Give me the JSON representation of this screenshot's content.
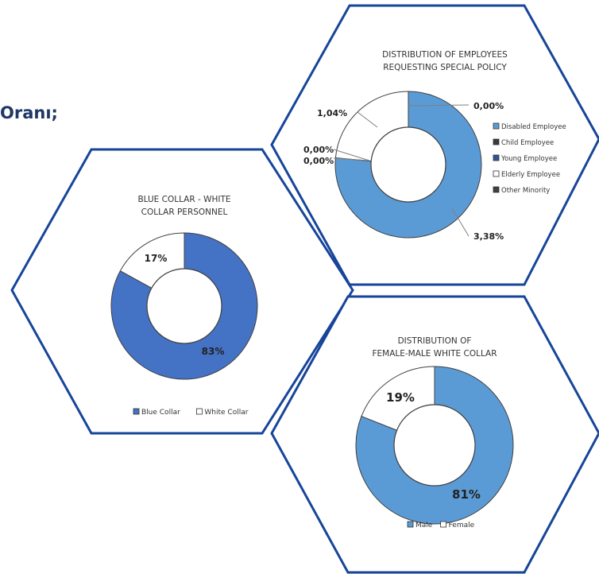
{
  "page": {
    "heading": "Oranı;",
    "colors": {
      "hex_border": "#17459a",
      "blue": "#5b9bd5",
      "blue_dark": "#4472c4",
      "white": "#ffffff",
      "outline": "#404040",
      "leader": "#7f7f7f",
      "text": "#222222"
    }
  },
  "chart_data": [
    {
      "id": "collar",
      "type": "pie",
      "donut": true,
      "title": [
        "BLUE COLLAR - WHITE",
        "COLLAR PERSONNEL"
      ],
      "slices": [
        {
          "label": "Blue Collar",
          "value": 83,
          "display": "83%",
          "color": "#4472c4"
        },
        {
          "label": "White Collar",
          "value": 17,
          "display": "17%",
          "color": "#ffffff"
        }
      ],
      "legend": [
        "Blue Collar",
        "White Collar"
      ],
      "legend_position": "bottom"
    },
    {
      "id": "policy",
      "type": "pie",
      "donut": true,
      "title": [
        "DISTRIBUTION OF EMPLOYEES",
        "REQUESTING SPECIAL POLICY"
      ],
      "slices": [
        {
          "label": "Disabled Employee",
          "value": 3.38,
          "display": "3,38%",
          "color": "#5b9bd5"
        },
        {
          "label": "Child Employee",
          "value": 0,
          "display": "0,00%",
          "color": "#3a3a3a"
        },
        {
          "label": "Young Employee",
          "value": 0,
          "display": "0,00%",
          "color": "#2f5597"
        },
        {
          "label": "Elderly Employee",
          "value": 1.04,
          "display": "1,04%",
          "color": "#ffffff"
        },
        {
          "label": "Other Minority",
          "value": 0,
          "display": "0,00%",
          "color": "#404040"
        }
      ],
      "legend": [
        "Disabled Employee",
        "Child Employee",
        "Young Employee",
        "Elderly Employee",
        "Other Minority"
      ],
      "legend_position": "right"
    },
    {
      "id": "gender",
      "type": "pie",
      "donut": true,
      "title": [
        "DISTRIBUTION OF",
        "FEMALE-MALE WHITE COLLAR"
      ],
      "slices": [
        {
          "label": "Male",
          "value": 81,
          "display": "81%",
          "color": "#5b9bd5"
        },
        {
          "label": "Female",
          "value": 19,
          "display": "19%",
          "color": "#ffffff"
        }
      ],
      "legend": [
        "Male",
        "Female"
      ],
      "legend_position": "bottom"
    }
  ]
}
